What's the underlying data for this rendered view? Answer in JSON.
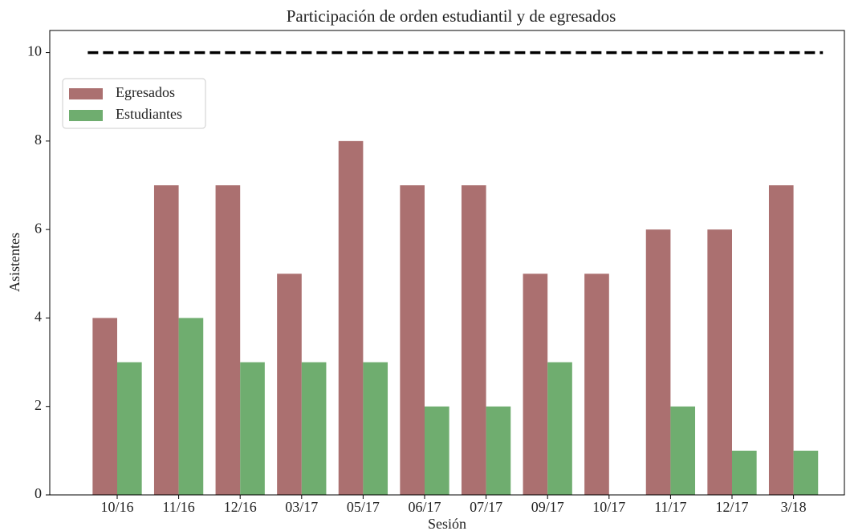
{
  "chart_data": {
    "type": "bar",
    "title": "Participación de orden estudiantil y de egresados",
    "xlabel": "Sesión",
    "ylabel": "Asistentes",
    "categories": [
      "10/16",
      "11/16",
      "12/16",
      "03/17",
      "05/17",
      "06/17",
      "07/17",
      "09/17",
      "10/17",
      "11/17",
      "12/17",
      "3/18"
    ],
    "series": [
      {
        "name": "Egresados",
        "color": "#ab7070",
        "values": [
          4,
          7,
          7,
          5,
          8,
          7,
          7,
          5,
          5,
          6,
          6,
          7
        ]
      },
      {
        "name": "Estudiantes",
        "color": "#6fad6f",
        "values": [
          3,
          4,
          3,
          3,
          3,
          2,
          2,
          3,
          0,
          2,
          1,
          1
        ]
      }
    ],
    "hline": {
      "value": 10,
      "color": "#000000",
      "style": "dashed"
    },
    "ylim": [
      0,
      10.5
    ],
    "yticks": [
      0,
      2,
      4,
      6,
      8,
      10
    ],
    "grid": false,
    "legend": "upper left"
  }
}
